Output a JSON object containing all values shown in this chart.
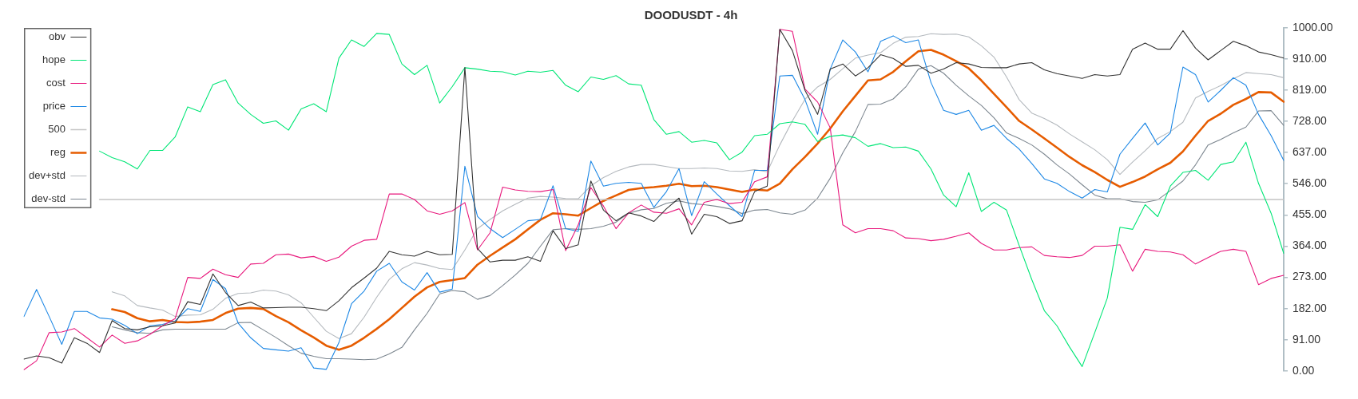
{
  "chart_data": {
    "type": "line",
    "title": "DOODUSDT - 4h",
    "categories": [
      null,
      null,
      null,
      null,
      null,
      null,
      null,
      null,
      null,
      null,
      null,
      null,
      null,
      null,
      null,
      null,
      null,
      null,
      null,
      null,
      null,
      null,
      null,
      null,
      null,
      null,
      null,
      null,
      null,
      null,
      null,
      null,
      null,
      null,
      null,
      null,
      null,
      null,
      null,
      null,
      null,
      null,
      null,
      null,
      null,
      null,
      null,
      null,
      null,
      null,
      null,
      null,
      null,
      null,
      null,
      null,
      null,
      null,
      null,
      null,
      null,
      null,
      null,
      null,
      null,
      null,
      null,
      null,
      null,
      null,
      null,
      null,
      null,
      null,
      null,
      null,
      null,
      null,
      null,
      null,
      null,
      null,
      null,
      null,
      null,
      null,
      null,
      null,
      null,
      null,
      null,
      null,
      null,
      null,
      null,
      null,
      null,
      null,
      null,
      null,
      null
    ],
    "series": [
      {
        "name": "obv",
        "color": "#333333",
        "values": [
          35,
          44,
          39,
          23,
          97,
          81,
          54,
          147,
          124,
          120,
          129,
          132,
          140,
          202,
          194,
          283,
          229,
          191,
          201,
          184,
          185,
          186,
          186,
          182,
          176,
          205,
          243,
          271,
          300,
          349,
          339,
          335,
          349,
          339,
          340,
          885,
          357,
          318,
          323,
          323,
          333,
          320,
          409,
          357,
          368,
          554,
          469,
          438,
          461,
          452,
          436,
          473,
          504,
          399,
          457,
          450,
          430,
          438,
          523,
          539,
          996,
          934,
          818,
          748,
          880,
          895,
          860,
          884,
          922,
          911,
          888,
          891,
          868,
          880,
          899,
          895,
          885,
          884,
          884,
          895,
          899,
          878,
          867,
          860,
          853,
          864,
          860,
          864,
          938,
          956,
          938,
          938,
          992,
          941,
          907,
          934,
          961,
          948,
          930,
          922,
          912
        ]
      },
      {
        "name": "hope",
        "color": "#00e676",
        "values": [
          null,
          null,
          null,
          null,
          null,
          null,
          641,
          622,
          610,
          589,
          643,
          643,
          682,
          770,
          756,
          835,
          849,
          781,
          748,
          722,
          729,
          702,
          764,
          779,
          756,
          912,
          965,
          946,
          984,
          981,
          895,
          864,
          891,
          781,
          829,
          884,
          880,
          874,
          872,
          863,
          874,
          871,
          876,
          833,
          814,
          857,
          850,
          861,
          837,
          833,
          733,
          690,
          698,
          667,
          672,
          665,
          616,
          638,
          686,
          690,
          721,
          726,
          719,
          669,
          684,
          688,
          680,
          655,
          663,
          651,
          653,
          641,
          589,
          513,
          479,
          578,
          465,
          492,
          469,
          366,
          267,
          176,
          132,
          70,
          13,
          112,
          213,
          419,
          413,
          485,
          450,
          539,
          579,
          585,
          556,
          602,
          610,
          667,
          547,
          460,
          343
        ]
      },
      {
        "name": "cost",
        "color": "#e8197d",
        "values": [
          4,
          30,
          112,
          114,
          124,
          97,
          70,
          105,
          81,
          88,
          107,
          132,
          153,
          273,
          270,
          297,
          281,
          273,
          312,
          314,
          339,
          341,
          330,
          334,
          320,
          332,
          364,
          381,
          384,
          516,
          516,
          500,
          467,
          457,
          467,
          491,
          353,
          403,
          536,
          528,
          524,
          523,
          529,
          351,
          426,
          535,
          481,
          415,
          461,
          484,
          463,
          460,
          473,
          426,
          492,
          500,
          488,
          492,
          552,
          566,
          996,
          990,
          822,
          784,
          709,
          426,
          403,
          415,
          415,
          409,
          388,
          386,
          380,
          384,
          393,
          403,
          372,
          353,
          353,
          360,
          362,
          337,
          333,
          331,
          337,
          364,
          364,
          368,
          291,
          355,
          349,
          347,
          339,
          312,
          331,
          349,
          355,
          349,
          252,
          270,
          279
        ]
      },
      {
        "name": "price",
        "color": "#1e88e5",
        "values": [
          159,
          238,
          159,
          78,
          174,
          174,
          155,
          151,
          133,
          109,
          132,
          136,
          146,
          182,
          174,
          267,
          240,
          140,
          97,
          66,
          62,
          58,
          68,
          9,
          5,
          83,
          196,
          233,
          291,
          314,
          260,
          236,
          287,
          230,
          239,
          597,
          451,
          415,
          389,
          413,
          438,
          442,
          540,
          415,
          407,
          612,
          539,
          547,
          550,
          547,
          477,
          523,
          590,
          453,
          552,
          516,
          482,
          450,
          585,
          585,
          860,
          862,
          791,
          690,
          880,
          965,
          930,
          872,
          961,
          977,
          957,
          965,
          841,
          760,
          748,
          760,
          702,
          716,
          678,
          647,
          605,
          560,
          547,
          523,
          504,
          529,
          522,
          632,
          678,
          723,
          659,
          694,
          886,
          864,
          784,
          818,
          855,
          833,
          748,
          686,
          614
        ]
      },
      {
        "name": "500",
        "color": "#c4c4c4",
        "values": [
          null,
          null,
          null,
          null,
          null,
          null,
          500,
          500,
          500,
          500,
          500,
          500,
          500,
          500,
          500,
          500,
          500,
          500,
          500,
          500,
          500,
          500,
          500,
          500,
          500,
          500,
          500,
          500,
          500,
          500,
          500,
          500,
          500,
          500,
          500,
          500,
          500,
          500,
          500,
          500,
          500,
          500,
          500,
          500,
          500,
          500,
          500,
          500,
          500,
          500,
          500,
          500,
          500,
          500,
          500,
          500,
          500,
          500,
          500,
          500,
          500,
          500,
          500,
          500,
          500,
          500,
          500,
          500,
          500,
          500,
          500,
          500,
          500,
          500,
          500,
          500,
          500,
          500,
          500,
          500,
          500,
          500,
          500,
          500,
          500,
          500,
          500,
          500,
          500,
          500,
          500,
          500,
          500,
          500,
          500,
          500,
          500,
          500,
          500,
          500,
          500
        ]
      },
      {
        "name": "reg",
        "color": "#e65c00",
        "values": [
          null,
          null,
          null,
          null,
          null,
          null,
          null,
          180,
          172,
          154,
          145,
          149,
          143,
          142,
          144,
          149,
          169,
          182,
          184,
          181,
          160,
          142,
          119,
          98,
          74,
          62,
          74,
          97,
          123,
          151,
          184,
          217,
          244,
          260,
          265,
          271,
          310,
          336,
          360,
          384,
          413,
          441,
          460,
          457,
          453,
          475,
          496,
          512,
          528,
          533,
          536,
          540,
          546,
          539,
          540,
          536,
          529,
          522,
          529,
          526,
          546,
          588,
          624,
          663,
          707,
          757,
          802,
          847,
          850,
          872,
          903,
          932,
          936,
          922,
          903,
          882,
          847,
          808,
          769,
          729,
          704,
          678,
          651,
          624,
          600,
          580,
          557,
          537,
          551,
          567,
          588,
          607,
          640,
          686,
          729,
          750,
          776,
          793,
          813,
          812,
          785
        ]
      },
      {
        "name": "dev+std",
        "color": "#b4b9be",
        "values": [
          null,
          null,
          null,
          null,
          null,
          null,
          null,
          231,
          219,
          191,
          184,
          178,
          159,
          163,
          164,
          180,
          212,
          226,
          228,
          236,
          233,
          222,
          199,
          157,
          116,
          95,
          109,
          157,
          215,
          267,
          298,
          316,
          309,
          299,
          296,
          353,
          415,
          442,
          467,
          486,
          504,
          509,
          507,
          503,
          502,
          540,
          564,
          582,
          595,
          602,
          602,
          596,
          590,
          590,
          592,
          590,
          583,
          582,
          587,
          581,
          659,
          729,
          792,
          828,
          850,
          881,
          912,
          921,
          928,
          955,
          973,
          975,
          983,
          981,
          982,
          974,
          948,
          915,
          857,
          791,
          752,
          736,
          717,
          691,
          668,
          645,
          616,
          573,
          609,
          642,
          678,
          698,
          725,
          796,
          815,
          832,
          852,
          870,
          867,
          864,
          855
        ]
      },
      {
        "name": "dev-std",
        "color": "#7d8790",
        "values": [
          null,
          null,
          null,
          null,
          null,
          null,
          null,
          129,
          120,
          112,
          110,
          120,
          122,
          122,
          122,
          122,
          122,
          141,
          142,
          120,
          98,
          74,
          52,
          43,
          36,
          36,
          35,
          33,
          35,
          50,
          69,
          120,
          168,
          225,
          235,
          231,
          209,
          220,
          249,
          280,
          314,
          364,
          412,
          415,
          413,
          415,
          422,
          434,
          460,
          470,
          474,
          489,
          496,
          488,
          485,
          480,
          473,
          459,
          469,
          471,
          461,
          457,
          469,
          504,
          562,
          636,
          698,
          777,
          778,
          793,
          828,
          880,
          890,
          868,
          833,
          802,
          774,
          738,
          694,
          678,
          659,
          632,
          601,
          574,
          543,
          513,
          502,
          502,
          494,
          492,
          499,
          526,
          554,
          601,
          659,
          675,
          694,
          711,
          758,
          759,
          716
        ]
      }
    ],
    "ylim": [
      0,
      1000
    ],
    "yticks": [
      {
        "value": 0,
        "label": "0.00"
      },
      {
        "value": 91,
        "label": "91.00"
      },
      {
        "value": 182,
        "label": "182.00"
      },
      {
        "value": 273,
        "label": "273.00"
      },
      {
        "value": 364,
        "label": "364.00"
      },
      {
        "value": 455,
        "label": "455.00"
      },
      {
        "value": 546,
        "label": "546.00"
      },
      {
        "value": 637,
        "label": "637.00"
      },
      {
        "value": 728,
        "label": "728.00"
      },
      {
        "value": 819,
        "label": "819.00"
      },
      {
        "value": 910,
        "label": "910.00"
      },
      {
        "value": 1000,
        "label": "1000.00"
      }
    ],
    "grid": false,
    "legend": "top left",
    "marker": "none",
    "tick_labels": "y"
  }
}
